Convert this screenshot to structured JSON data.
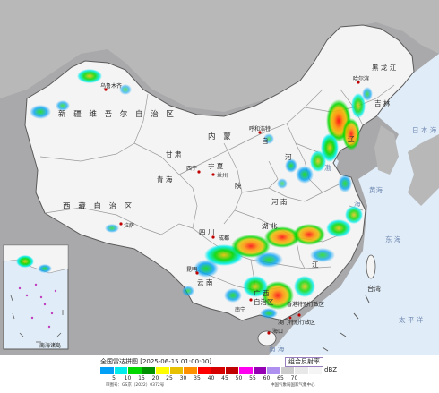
{
  "map": {
    "province_labels": [
      {
        "id": "xinjiang",
        "text": "新 疆 维 吾 尔 自 治 区"
      },
      {
        "id": "xizang",
        "text": "西 藏 自 治 区"
      },
      {
        "id": "qinghai",
        "text": "青 海"
      },
      {
        "id": "gansu",
        "text": "甘 肃"
      },
      {
        "id": "neimenggu",
        "text": "内   蒙"
      },
      {
        "id": "neimenggu2",
        "text": "自"
      },
      {
        "id": "ningxia",
        "text": "宁 夏"
      },
      {
        "id": "shanxi",
        "text": "陕"
      },
      {
        "id": "sichuan",
        "text": "四 川"
      },
      {
        "id": "yunnan",
        "text": "云 南"
      },
      {
        "id": "guangxi",
        "text": "广 西"
      },
      {
        "id": "guangxi2",
        "text": "自治区"
      },
      {
        "id": "heilongjiang",
        "text": "黑 龙 江"
      },
      {
        "id": "jilin",
        "text": "吉 林"
      },
      {
        "id": "liaoning",
        "text": "辽"
      },
      {
        "id": "hebei",
        "text": "河"
      },
      {
        "id": "henan",
        "text": "河 南"
      },
      {
        "id": "hubei",
        "text": "湖 北"
      },
      {
        "id": "jiangxi",
        "text": "江"
      },
      {
        "id": "taiwan",
        "text": "台湾"
      }
    ],
    "sea_labels": [
      {
        "id": "bohai",
        "text": "渤"
      },
      {
        "id": "huanghai",
        "text": "黄海"
      },
      {
        "id": "donghai",
        "text": "东 海"
      },
      {
        "id": "taipingyang",
        "text": "太 平 洋"
      },
      {
        "id": "nanhai",
        "text": "南 海"
      },
      {
        "id": "ribenhai",
        "text": "日 本 海"
      },
      {
        "id": "yellow-mark",
        "text": "海"
      }
    ],
    "city_labels": [
      {
        "id": "wulumuqi",
        "text": "乌鲁木齐"
      },
      {
        "id": "lasa",
        "text": "拉萨"
      },
      {
        "id": "xining",
        "text": "西宁"
      },
      {
        "id": "lanzhou",
        "text": "兰州"
      },
      {
        "id": "harbin",
        "text": "哈尔滨"
      },
      {
        "id": "huhehaote",
        "text": "呼和浩特"
      },
      {
        "id": "chengdu",
        "text": "成都"
      },
      {
        "id": "kunming",
        "text": "昆明"
      },
      {
        "id": "nanning",
        "text": "南宁"
      },
      {
        "id": "haikou",
        "text": "海口"
      },
      {
        "id": "xianggang",
        "text": "香港特别行政区"
      },
      {
        "id": "aomen",
        "text": "澳门特别行政区"
      },
      {
        "id": "nanhaizhudao",
        "text": "南海诸岛"
      }
    ],
    "colors": {
      "background": "#a9a9ab",
      "land": "#f4f4f4",
      "sea": "#e0ecf7",
      "border": "#8c8c8c",
      "nation_border": "#5b5b5b"
    }
  },
  "legend": {
    "title": "全国雷达拼图 [2025-06-15 01:00:00]",
    "product": "组合反射率",
    "unit": "dBZ",
    "ticks": [
      "5",
      "10",
      "15",
      "20",
      "25",
      "30",
      "35",
      "40",
      "45",
      "50",
      "55",
      "60",
      "65",
      "70"
    ],
    "colors": [
      "#01a0f6",
      "#00ecec",
      "#00d800",
      "#019000",
      "#ffff00",
      "#e7c000",
      "#ff9000",
      "#ff0000",
      "#d60000",
      "#c00000",
      "#ff00f0",
      "#9600b4",
      "#ad90f0",
      "#cccccc",
      "#e8e8e8",
      "#f5f5f5"
    ],
    "review_number": "审图号：GS京（2022）0372号",
    "credit": "中国气象局国家气象中心"
  }
}
